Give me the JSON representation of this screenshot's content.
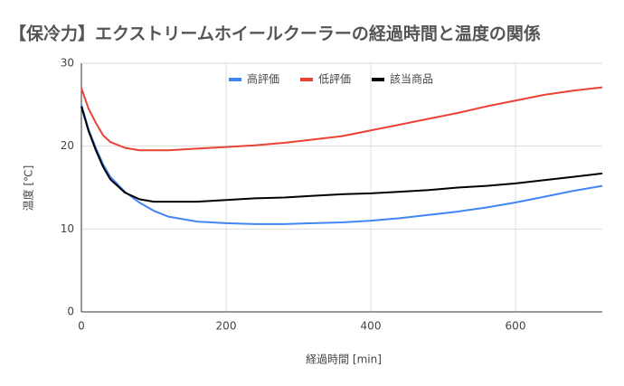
{
  "chart_data": {
    "type": "line",
    "title": "【保冷力】エクストリームホイールクーラーの経過時間と温度の関係",
    "x_label": "経過時間 [min]",
    "y_label": "温度 [℃]",
    "x": [
      0,
      10,
      20,
      30,
      40,
      60,
      80,
      100,
      120,
      160,
      200,
      240,
      280,
      320,
      360,
      400,
      440,
      480,
      520,
      560,
      600,
      640,
      680,
      720
    ],
    "series": [
      {
        "name": "高評価",
        "color": "#4285f4",
        "values": [
          25,
          22,
          19.8,
          17.8,
          16.3,
          14.5,
          13.2,
          12.2,
          11.5,
          10.9,
          10.7,
          10.6,
          10.6,
          10.7,
          10.8,
          11.0,
          11.3,
          11.7,
          12.1,
          12.6,
          13.2,
          13.9,
          14.6,
          15.2
        ]
      },
      {
        "name": "低評価",
        "color": "#ea4335",
        "values": [
          27,
          24.5,
          22.8,
          21.3,
          20.5,
          19.8,
          19.5,
          19.5,
          19.5,
          19.7,
          19.9,
          20.1,
          20.4,
          20.8,
          21.2,
          21.9,
          22.6,
          23.3,
          24.0,
          24.8,
          25.5,
          26.2,
          26.7,
          27.1
        ]
      },
      {
        "name": "該当商品",
        "color": "#000000",
        "values": [
          24.8,
          21.8,
          19.5,
          17.5,
          16.0,
          14.4,
          13.6,
          13.3,
          13.3,
          13.3,
          13.5,
          13.7,
          13.8,
          14.0,
          14.2,
          14.3,
          14.5,
          14.7,
          15.0,
          15.2,
          15.5,
          15.9,
          16.3,
          16.7
        ]
      }
    ],
    "xlim": [
      0,
      720
    ],
    "xticks": [
      0,
      200,
      400,
      600
    ],
    "ylim": [
      0,
      30
    ],
    "yticks": [
      0,
      10,
      20,
      30
    ],
    "grid": true,
    "legend": "top"
  }
}
